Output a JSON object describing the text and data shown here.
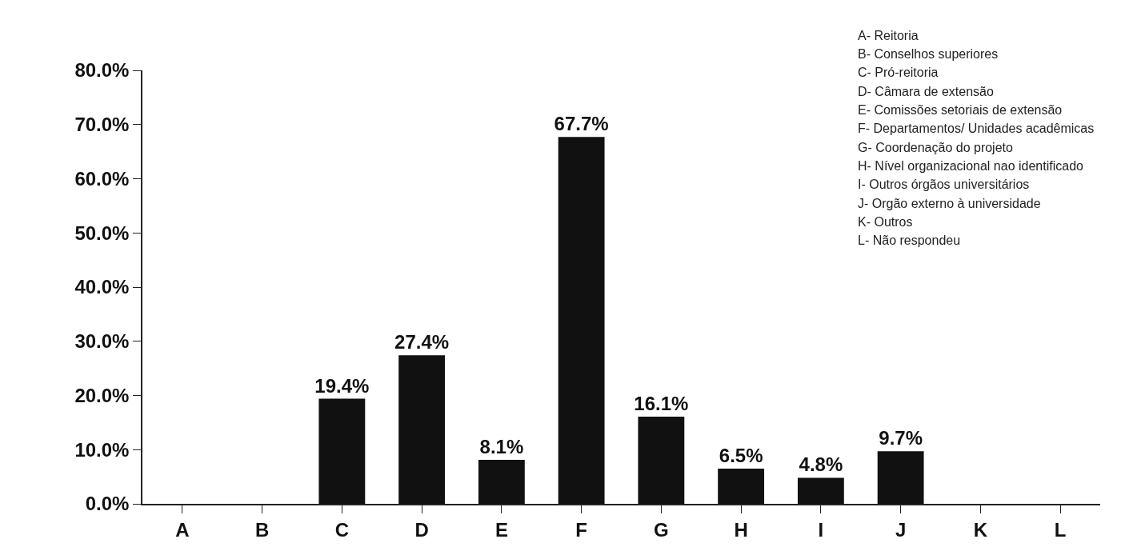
{
  "chart_data": {
    "type": "bar",
    "categories": [
      "A",
      "B",
      "C",
      "D",
      "E",
      "F",
      "G",
      "H",
      "I",
      "J",
      "K",
      "L"
    ],
    "values": [
      0,
      0,
      19.4,
      27.4,
      8.1,
      67.7,
      16.1,
      6.5,
      4.8,
      9.7,
      0,
      0
    ],
    "value_labels": [
      null,
      null,
      "19.4%",
      "27.4%",
      "8.1%",
      "67.7%",
      "16.1%",
      "6.5%",
      "4.8%",
      "9.7%",
      null,
      null
    ],
    "color": "#111111",
    "ylim": [
      0,
      80
    ],
    "yticks": [
      {
        "value": 0,
        "label": "0.0%"
      },
      {
        "value": 10,
        "label": "10.0%"
      },
      {
        "value": 20,
        "label": "20.0%"
      },
      {
        "value": 30,
        "label": "30.0%"
      },
      {
        "value": 40,
        "label": "40.0%"
      },
      {
        "value": 50,
        "label": "50.0%"
      },
      {
        "value": 60,
        "label": "60.0%"
      },
      {
        "value": 70,
        "label": "70.0%"
      },
      {
        "value": 80,
        "label": "80.0%"
      }
    ],
    "grid": false,
    "annotations": [
      "A- Reitoria",
      "B- Conselhos superiores",
      "C- Pró-reitoria",
      "D- Câmara de extensão",
      "E- Comissões setoriais de extensão",
      "F- Departamentos/ Unidades acadêmicas",
      "G- Coordenação do projeto",
      "H- Nível organizacional nao identificado",
      "I- Outros órgãos universitários",
      "J- Orgão externo à universidade",
      "K- Outros",
      "L- Não respondeu"
    ]
  }
}
